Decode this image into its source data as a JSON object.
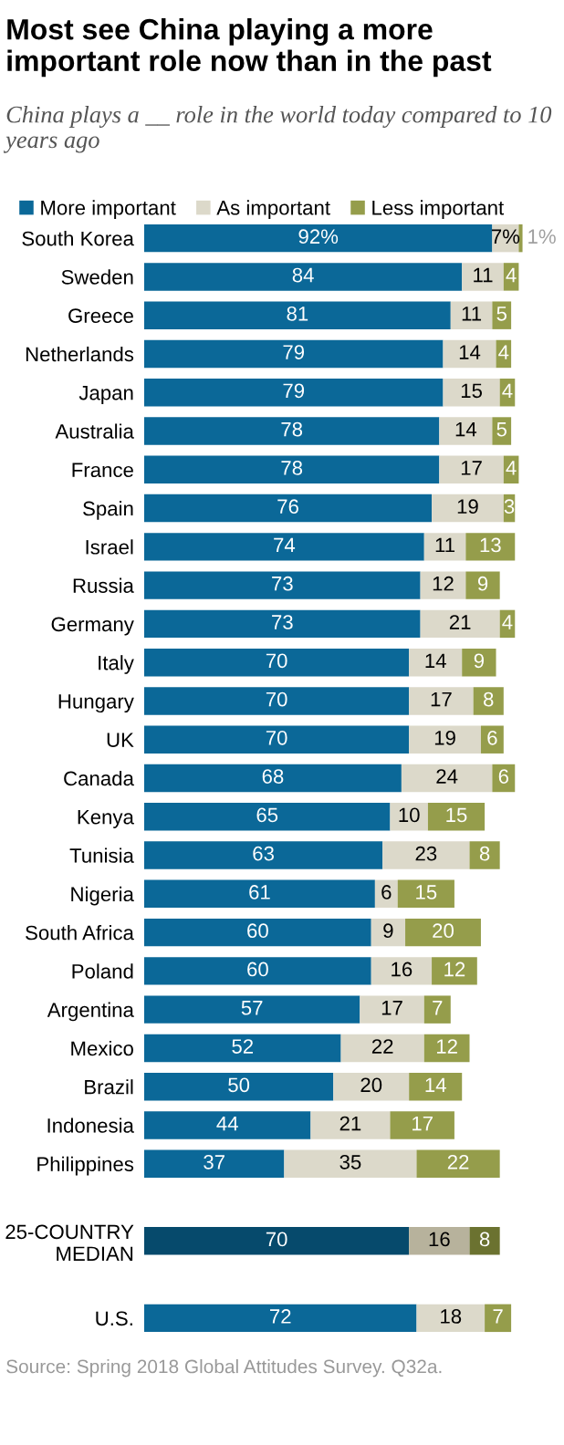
{
  "chart_data": {
    "type": "bar",
    "orientation": "horizontal",
    "stacked": true,
    "title": "Most see China playing a more important role now than in the past",
    "subtitle": "China plays a __ role in the world today compared to 10 years ago",
    "categories": [
      "South Korea",
      "Sweden",
      "Greece",
      "Netherlands",
      "Japan",
      "Australia",
      "France",
      "Spain",
      "Israel",
      "Russia",
      "Germany",
      "Italy",
      "Hungary",
      "UK",
      "Canada",
      "Kenya",
      "Tunisia",
      "Nigeria",
      "South Africa",
      "Poland",
      "Argentina",
      "Mexico",
      "Brazil",
      "Indonesia",
      "Philippines",
      null,
      "25-COUNTRY\nMEDIAN",
      null,
      "U.S."
    ],
    "series": [
      {
        "name": "More important",
        "color": "#0b6898",
        "colors": [
          "#0b6898",
          "#0b6898",
          "#0b6898",
          "#0b6898",
          "#0b6898",
          "#0b6898",
          "#0b6898",
          "#0b6898",
          "#0b6898",
          "#0b6898",
          "#0b6898",
          "#0b6898",
          "#0b6898",
          "#0b6898",
          "#0b6898",
          "#0b6898",
          "#0b6898",
          "#0b6898",
          "#0b6898",
          "#0b6898",
          "#0b6898",
          "#0b6898",
          "#0b6898",
          "#0b6898",
          "#0b6898",
          null,
          "#064a6c",
          null,
          "#0b6898"
        ],
        "values": [
          92,
          84,
          81,
          79,
          79,
          78,
          78,
          76,
          74,
          73,
          73,
          70,
          70,
          70,
          68,
          65,
          63,
          61,
          60,
          60,
          57,
          52,
          50,
          44,
          37,
          null,
          70,
          null,
          72
        ],
        "value_labels": [
          "92%",
          "84",
          "81",
          "79",
          "79",
          "78",
          "78",
          "76",
          "74",
          "73",
          "73",
          "70",
          "70",
          "70",
          "68",
          "65",
          "63",
          "61",
          "60",
          "60",
          "57",
          "52",
          "50",
          "44",
          "37",
          null,
          "70",
          null,
          "72"
        ]
      },
      {
        "name": "As important",
        "color": "#dcd9ca",
        "colors": [
          "#dcd9ca",
          "#dcd9ca",
          "#dcd9ca",
          "#dcd9ca",
          "#dcd9ca",
          "#dcd9ca",
          "#dcd9ca",
          "#dcd9ca",
          "#dcd9ca",
          "#dcd9ca",
          "#dcd9ca",
          "#dcd9ca",
          "#dcd9ca",
          "#dcd9ca",
          "#dcd9ca",
          "#dcd9ca",
          "#dcd9ca",
          "#dcd9ca",
          "#dcd9ca",
          "#dcd9ca",
          "#dcd9ca",
          "#dcd9ca",
          "#dcd9ca",
          "#dcd9ca",
          "#dcd9ca",
          null,
          "#b7b29c",
          null,
          "#dcd9ca"
        ],
        "values": [
          7,
          11,
          11,
          14,
          15,
          14,
          17,
          19,
          11,
          12,
          21,
          14,
          17,
          19,
          24,
          10,
          23,
          6,
          9,
          16,
          17,
          22,
          20,
          21,
          35,
          null,
          16,
          null,
          18
        ],
        "value_labels": [
          "7%",
          "11",
          "11",
          "14",
          "15",
          "14",
          "17",
          "19",
          "11",
          "12",
          "21",
          "14",
          "17",
          "19",
          "24",
          "10",
          "23",
          "6",
          "9",
          "16",
          "17",
          "22",
          "20",
          "21",
          "35",
          null,
          "16",
          null,
          "18"
        ]
      },
      {
        "name": "Less important",
        "color": "#959d4b",
        "colors": [
          "#959d4b",
          "#959d4b",
          "#959d4b",
          "#959d4b",
          "#959d4b",
          "#959d4b",
          "#959d4b",
          "#959d4b",
          "#959d4b",
          "#959d4b",
          "#959d4b",
          "#959d4b",
          "#959d4b",
          "#959d4b",
          "#959d4b",
          "#959d4b",
          "#959d4b",
          "#959d4b",
          "#959d4b",
          "#959d4b",
          "#959d4b",
          "#959d4b",
          "#959d4b",
          "#959d4b",
          "#959d4b",
          null,
          "#6b7230",
          null,
          "#959d4b"
        ],
        "values": [
          1,
          4,
          5,
          4,
          4,
          5,
          4,
          3,
          13,
          9,
          4,
          9,
          8,
          6,
          6,
          15,
          8,
          15,
          20,
          12,
          7,
          12,
          14,
          17,
          22,
          null,
          8,
          null,
          7
        ],
        "value_labels": [
          "1%",
          "4",
          "5",
          "4",
          "4",
          "5",
          "4",
          "3",
          "13",
          "9",
          "4",
          "9",
          "8",
          "6",
          "6",
          "15",
          "8",
          "15",
          "20",
          "12",
          "7",
          "12",
          "14",
          "17",
          "22",
          null,
          "8",
          null,
          "7"
        ]
      }
    ],
    "legend": "top left",
    "grid": false,
    "annotations": [
      "Source: Spring 2018 Global Attitudes Survey. Q32a."
    ]
  }
}
